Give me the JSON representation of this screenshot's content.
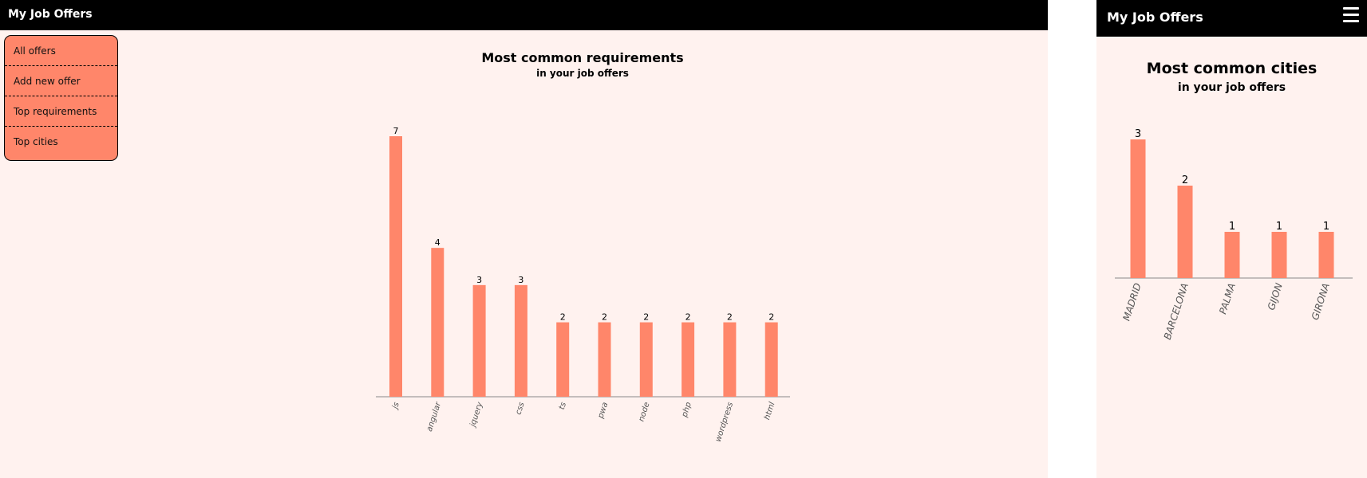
{
  "desktop": {
    "app_title": "My Job Offers",
    "nav": [
      {
        "label": "All offers"
      },
      {
        "label": "Add new offer"
      },
      {
        "label": "Top requirements"
      },
      {
        "label": "Top cities"
      }
    ],
    "title": "Most common requirements",
    "subtitle": "in your job offers"
  },
  "mobile": {
    "app_title": "My Job Offers",
    "menu_icon": "hamburger-menu-icon",
    "title": "Most common cities",
    "subtitle": "in your job offers"
  },
  "colors": {
    "bar": "#ff866a",
    "axis": "#888888",
    "tick_label": "#555555",
    "topbar": "#000000",
    "page_bg": "#fff2ef"
  },
  "chart_data": [
    {
      "type": "bar",
      "title": "Most common requirements",
      "subtitle": "in your job offers",
      "categories": [
        "js",
        "angular",
        "jquery",
        "css",
        "ts",
        "pwa",
        "node",
        "php",
        "wordpress",
        "html"
      ],
      "values": [
        7,
        4,
        3,
        3,
        2,
        2,
        2,
        2,
        2,
        2
      ],
      "data_labels": true,
      "grid": false,
      "legend": "none"
    },
    {
      "type": "bar",
      "title": "Most common cities",
      "subtitle": "in your job offers",
      "categories": [
        "MADRID",
        "BARCELONA",
        "PALMA",
        "GIJON",
        "GIRONA"
      ],
      "values": [
        3,
        2,
        1,
        1,
        1
      ],
      "data_labels": true,
      "grid": false,
      "legend": "none"
    }
  ]
}
